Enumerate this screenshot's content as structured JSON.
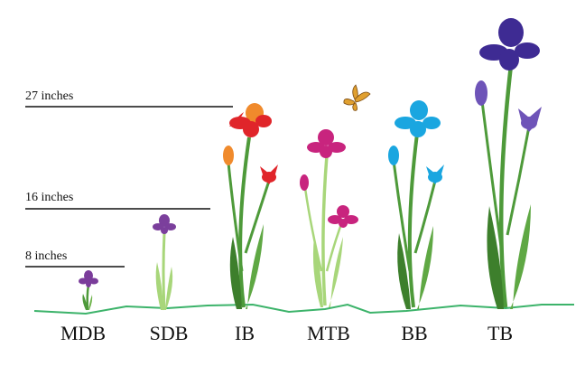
{
  "height_markers": [
    {
      "label": "27 inches"
    },
    {
      "label": "16 inches"
    },
    {
      "label": "8 inches"
    }
  ],
  "iris_classes": [
    {
      "label": "MDB"
    },
    {
      "label": "SDB"
    },
    {
      "label": "IB"
    },
    {
      "label": "MTB"
    },
    {
      "label": "BB"
    },
    {
      "label": "TB"
    }
  ],
  "colors": {
    "ground": "#3cb36a",
    "stem_dark": "#4e9a3a",
    "stem_light": "#a8d67a",
    "mdb_flower": "#7a3c9a",
    "sdb_flower": "#7b3f9c",
    "ib_flower": "#e0252a",
    "ib_bud": "#f08a2c",
    "mtb_flower": "#c8247e",
    "bb_flower": "#1aa6e0",
    "tb_flower": "#3e2b93",
    "tb_bud": "#6e54b8",
    "butterfly": "#e0a030"
  }
}
